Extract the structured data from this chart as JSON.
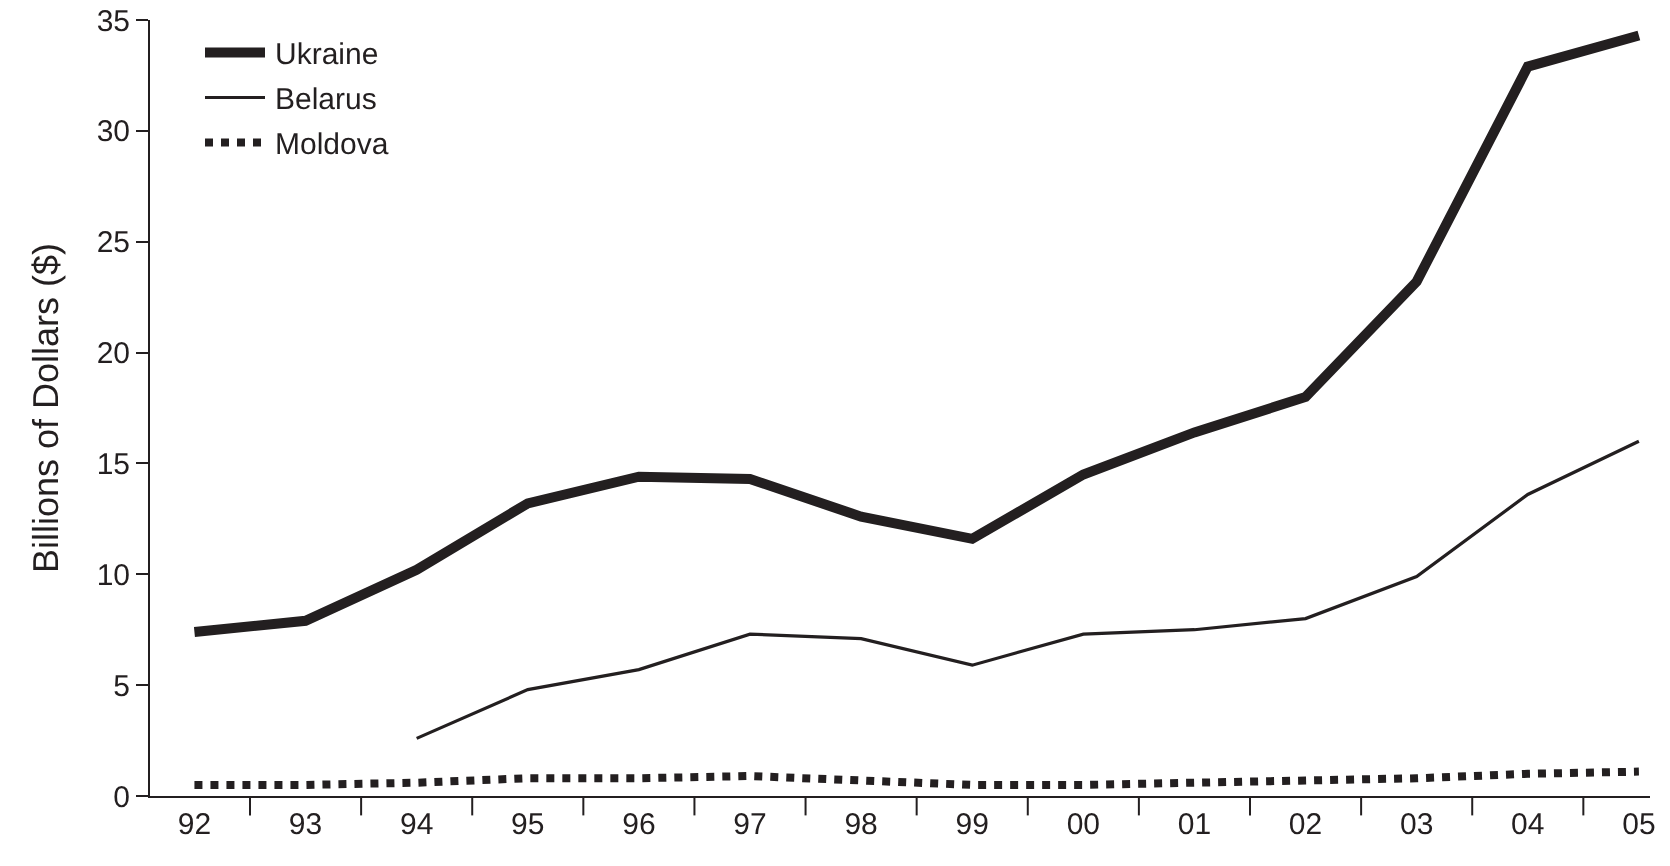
{
  "chart_data": {
    "type": "line",
    "ylabel": "Billions of Dollars ($)",
    "categories": [
      "92",
      "93",
      "94",
      "95",
      "96",
      "97",
      "98",
      "99",
      "00",
      "01",
      "02",
      "03",
      "04",
      "05"
    ],
    "series": [
      {
        "name": "Ukraine",
        "color": "#231f20",
        "line_style": "solid",
        "values": [
          7.4,
          7.9,
          10.2,
          13.2,
          14.4,
          14.3,
          12.6,
          11.6,
          14.5,
          16.4,
          18.0,
          23.2,
          32.9,
          34.3
        ]
      },
      {
        "name": "Belarus",
        "color": "#231f20",
        "line_style": "solid",
        "values": [
          null,
          null,
          2.6,
          4.8,
          5.7,
          7.3,
          7.1,
          5.9,
          7.3,
          7.5,
          8.0,
          9.9,
          13.6,
          16.0
        ]
      },
      {
        "name": "Moldova",
        "color": "#231f20",
        "line_style": "dotted",
        "values": [
          0.5,
          0.5,
          0.6,
          0.8,
          0.8,
          0.9,
          0.7,
          0.5,
          0.5,
          0.6,
          0.7,
          0.8,
          1.0,
          1.1
        ]
      }
    ],
    "ylim": [
      0,
      35
    ],
    "yticks": [
      0,
      5,
      10,
      15,
      20,
      25,
      30,
      35
    ],
    "grid": false,
    "legend": "top left",
    "marker": "none"
  }
}
